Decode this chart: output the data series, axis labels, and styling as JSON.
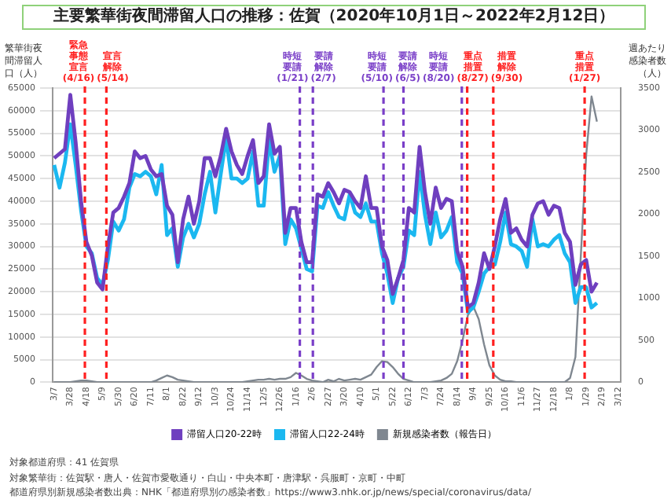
{
  "chart_data": {
    "type": "line",
    "title": "主要繁華街夜間滞留人口の推移：佐賀（2020年10月1日～2022年2月12日）",
    "ylabel": "繁華街夜間滞留人口（人）",
    "y2label": "週あたり感染者数（人）",
    "x": [
      "2020-03-07",
      "2020-03-14",
      "2020-03-21",
      "2020-03-28",
      "2020-04-04",
      "2020-04-11",
      "2020-04-18",
      "2020-04-25",
      "2020-05-02",
      "2020-05-09",
      "2020-05-16",
      "2020-05-23",
      "2020-05-30",
      "2020-06-06",
      "2020-06-13",
      "2020-06-20",
      "2020-06-27",
      "2020-07-04",
      "2020-07-11",
      "2020-07-18",
      "2020-07-25",
      "2020-08-01",
      "2020-08-08",
      "2020-08-15",
      "2020-08-22",
      "2020-08-29",
      "2020-09-05",
      "2020-09-12",
      "2020-09-19",
      "2020-09-26",
      "2020-10-03",
      "2020-10-10",
      "2020-10-17",
      "2020-10-24",
      "2020-10-31",
      "2020-11-07",
      "2020-11-14",
      "2020-11-21",
      "2020-11-28",
      "2020-12-05",
      "2020-12-12",
      "2020-12-19",
      "2020-12-26",
      "2021-01-02",
      "2021-01-09",
      "2021-01-16",
      "2021-01-23",
      "2021-01-30",
      "2021-02-06",
      "2021-02-13",
      "2021-02-20",
      "2021-02-27",
      "2021-03-06",
      "2021-03-13",
      "2021-03-20",
      "2021-03-27",
      "2021-04-03",
      "2021-04-10",
      "2021-04-17",
      "2021-04-24",
      "2021-05-01",
      "2021-05-08",
      "2021-05-15",
      "2021-05-22",
      "2021-05-29",
      "2021-06-05",
      "2021-06-12",
      "2021-06-19",
      "2021-06-26",
      "2021-07-03",
      "2021-07-10",
      "2021-07-17",
      "2021-07-24",
      "2021-07-31",
      "2021-08-07",
      "2021-08-14",
      "2021-08-21",
      "2021-08-28",
      "2021-09-04",
      "2021-09-11",
      "2021-09-18",
      "2021-09-25",
      "2021-10-02",
      "2021-10-09",
      "2021-10-16",
      "2021-10-23",
      "2021-10-30",
      "2021-11-06",
      "2021-11-13",
      "2021-11-20",
      "2021-11-27",
      "2021-12-04",
      "2021-12-11",
      "2021-12-18",
      "2021-12-25",
      "2022-01-01",
      "2022-01-08",
      "2022-01-15",
      "2022-01-22",
      "2022-01-29",
      "2022-02-05",
      "2022-02-12"
    ],
    "series": [
      {
        "name": "滞留人口20-22時",
        "color": "#6f3fbf",
        "values": [
          49500,
          50500,
          51500,
          63500,
          53000,
          40000,
          31000,
          28000,
          22000,
          20500,
          30000,
          37500,
          38500,
          41000,
          44000,
          51000,
          49500,
          50000,
          47000,
          45500,
          46000,
          39000,
          37000,
          26500,
          36000,
          41000,
          35000,
          40000,
          49500,
          49500,
          45500,
          50000,
          56000,
          51000,
          48000,
          46000,
          50000,
          53500,
          44000,
          45500,
          57000,
          50500,
          52000,
          33000,
          38500,
          38500,
          31000,
          26500,
          26500,
          41500,
          41000,
          44000,
          42000,
          39500,
          42500,
          42000,
          40000,
          38500,
          45500,
          38500,
          38500,
          30000,
          27000,
          19500,
          23000,
          27000,
          38500,
          37500,
          52000,
          42000,
          35000,
          43000,
          38500,
          40500,
          40000,
          29000,
          25500,
          16500,
          17500,
          22000,
          28500,
          25000,
          30000,
          36000,
          40500,
          33000,
          34000,
          31500,
          30000,
          37000,
          39500,
          40000,
          37000,
          39000,
          38500,
          33000,
          31000,
          21500,
          26000,
          27000,
          20000,
          22000
        ]
      },
      {
        "name": "滞留人口22-24時",
        "color": "#1bb8f0",
        "values": [
          48000,
          43000,
          48500,
          57000,
          48000,
          38000,
          30000,
          28500,
          23000,
          21500,
          27000,
          35500,
          33500,
          36000,
          43000,
          46000,
          45500,
          46500,
          45500,
          41500,
          48000,
          32500,
          34000,
          25500,
          32000,
          35000,
          32000,
          35000,
          41500,
          46500,
          37500,
          46000,
          54000,
          45000,
          45000,
          44000,
          45000,
          51000,
          39000,
          39000,
          53500,
          46500,
          50000,
          30500,
          36000,
          34000,
          29500,
          25000,
          24500,
          39000,
          38500,
          42000,
          39000,
          36500,
          36000,
          41500,
          37500,
          36500,
          39500,
          35500,
          35500,
          28500,
          24000,
          17500,
          23000,
          25500,
          33500,
          32500,
          46500,
          37000,
          30500,
          37500,
          32000,
          33500,
          36500,
          26500,
          24000,
          15500,
          16500,
          20000,
          24000,
          25500,
          26000,
          31000,
          37500,
          30500,
          30000,
          29000,
          25500,
          36000,
          30000,
          30500,
          30000,
          31500,
          32500,
          28500,
          26500,
          17500,
          21000,
          21000,
          16500,
          17500
        ]
      },
      {
        "name": "新規感染者数（報告日）",
        "color": "#7f8790",
        "axis": "y2",
        "values": [
          0,
          0,
          0,
          0,
          10,
          20,
          20,
          10,
          0,
          0,
          0,
          0,
          0,
          0,
          0,
          0,
          0,
          0,
          0,
          20,
          50,
          80,
          60,
          30,
          20,
          10,
          0,
          0,
          0,
          0,
          0,
          0,
          0,
          0,
          0,
          0,
          10,
          20,
          30,
          30,
          40,
          30,
          40,
          40,
          60,
          110,
          80,
          40,
          20,
          10,
          0,
          30,
          10,
          40,
          20,
          30,
          40,
          30,
          60,
          90,
          180,
          250,
          240,
          180,
          100,
          40,
          20,
          0,
          0,
          0,
          0,
          10,
          20,
          50,
          100,
          250,
          500,
          800,
          900,
          750,
          450,
          200,
          80,
          30,
          10,
          10,
          0,
          0,
          0,
          0,
          0,
          0,
          0,
          0,
          0,
          0,
          50,
          300,
          1500,
          2700,
          3400,
          3100
        ]
      }
    ],
    "xlim": [
      "2020-03-05",
      "2022-03-15"
    ],
    "xticks": [
      {
        "value": "2020-03-07",
        "label": "3/7"
      },
      {
        "value": "2020-03-28",
        "label": "3/28"
      },
      {
        "value": "2020-04-18",
        "label": "4/18"
      },
      {
        "value": "2020-05-09",
        "label": "5/9"
      },
      {
        "value": "2020-05-30",
        "label": "5/30"
      },
      {
        "value": "2020-06-20",
        "label": "6/20"
      },
      {
        "value": "2020-07-11",
        "label": "7/11"
      },
      {
        "value": "2020-08-01",
        "label": "8/1"
      },
      {
        "value": "2020-08-22",
        "label": "8/22"
      },
      {
        "value": "2020-09-12",
        "label": "9/12"
      },
      {
        "value": "2020-10-03",
        "label": "10/3"
      },
      {
        "value": "2020-10-24",
        "label": "10/24"
      },
      {
        "value": "2020-11-14",
        "label": "11/14"
      },
      {
        "value": "2020-12-05",
        "label": "12/5"
      },
      {
        "value": "2020-12-26",
        "label": "12/26"
      },
      {
        "value": "2021-01-16",
        "label": "1/16"
      },
      {
        "value": "2021-02-06",
        "label": "2/6"
      },
      {
        "value": "2021-02-27",
        "label": "2/27"
      },
      {
        "value": "2021-03-20",
        "label": "3/20"
      },
      {
        "value": "2021-04-10",
        "label": "4/10"
      },
      {
        "value": "2021-05-01",
        "label": "5/1"
      },
      {
        "value": "2021-05-22",
        "label": "5/22"
      },
      {
        "value": "2021-06-12",
        "label": "6/12"
      },
      {
        "value": "2021-07-03",
        "label": "7/3"
      },
      {
        "value": "2021-07-24",
        "label": "7/24"
      },
      {
        "value": "2021-08-14",
        "label": "8/14"
      },
      {
        "value": "2021-09-04",
        "label": "9/4"
      },
      {
        "value": "2021-09-25",
        "label": "9/25"
      },
      {
        "value": "2021-10-16",
        "label": "10/16"
      },
      {
        "value": "2021-11-06",
        "label": "11/6"
      },
      {
        "value": "2021-11-27",
        "label": "11/27"
      },
      {
        "value": "2021-12-18",
        "label": "12/18"
      },
      {
        "value": "2022-01-08",
        "label": "1/8"
      },
      {
        "value": "2022-01-29",
        "label": "1/29"
      },
      {
        "value": "2022-02-19",
        "label": "2/19"
      },
      {
        "value": "2022-03-12",
        "label": "3/12"
      }
    ],
    "ylim": [
      0,
      65000
    ],
    "yticks": [
      0,
      5000,
      10000,
      15000,
      20000,
      25000,
      30000,
      35000,
      40000,
      45000,
      50000,
      55000,
      60000,
      65000
    ],
    "y2lim": [
      0,
      3500
    ],
    "y2ticks": [
      0,
      500,
      1000,
      1500,
      2000,
      2500,
      3000,
      3500
    ],
    "ref_lines": [
      {
        "axis": "x",
        "value": "2020-04-16",
        "label": "緊急事態宣言(4/16)",
        "color": "#ff2020",
        "line_style": "dashed"
      },
      {
        "axis": "x",
        "value": "2020-05-14",
        "label": "宣言解除(5/14)",
        "color": "#ff2020",
        "line_style": "dashed"
      },
      {
        "axis": "x",
        "value": "2021-01-21",
        "label": "時短要請(1/21)",
        "color": "#7a3fc8",
        "line_style": "dashed"
      },
      {
        "axis": "x",
        "value": "2021-02-07",
        "label": "要請解除(2/7)",
        "color": "#7a3fc8",
        "line_style": "dashed"
      },
      {
        "axis": "x",
        "value": "2021-05-10",
        "label": "時短要請(5/10)",
        "color": "#7a3fc8",
        "line_style": "dashed"
      },
      {
        "axis": "x",
        "value": "2021-06-05",
        "label": "要請解除(6/5)",
        "color": "#7a3fc8",
        "line_style": "dashed"
      },
      {
        "axis": "x",
        "value": "2021-08-20",
        "label": "時短要請(8/20)",
        "color": "#7a3fc8",
        "line_style": "dashed"
      },
      {
        "axis": "x",
        "value": "2021-08-27",
        "label": "重点措置(8/27)",
        "color": "#ff2020",
        "line_style": "dashed"
      },
      {
        "axis": "x",
        "value": "2021-09-30",
        "label": "措置解除(9/30)",
        "color": "#ff2020",
        "line_style": "dashed"
      },
      {
        "axis": "x",
        "value": "2022-01-27",
        "label": "重点措置(1/27)",
        "color": "#ff2020",
        "line_style": "dashed"
      }
    ],
    "annotations": [
      "対象都道府県：41 佐賀県",
      "対象繁華街：佐賀駅・唐人・佐賀市愛敬通り・白山・中央本町・唐津駅・呉服町・京町・中町",
      "都道府県別新規感染者数出典：NHK「都道府県別の感染者数」https://www3.nhk.or.jp/news/special/coronavirus/data/"
    ],
    "grid": "y",
    "legend": "bottom",
    "marker": "none",
    "line_style": "solid"
  }
}
